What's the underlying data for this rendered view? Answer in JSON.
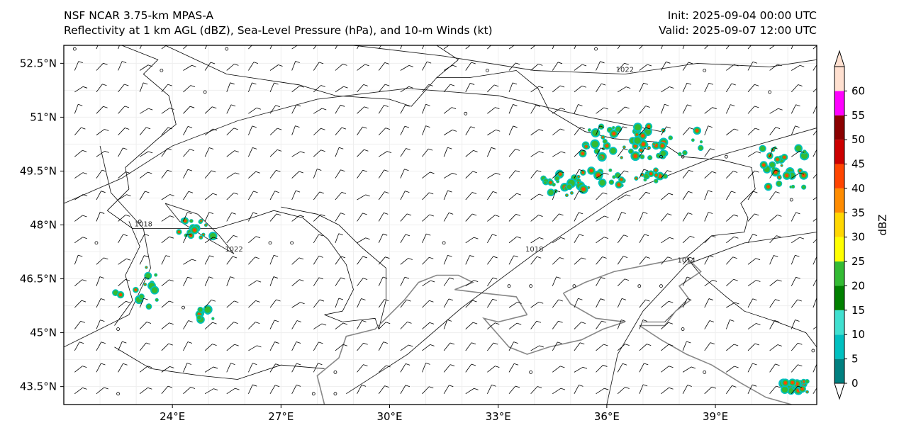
{
  "header": {
    "line1_left": "NSF NCAR 3.75-km MPAS-A",
    "line2_left": "Reflectivity at 1 km AGL (dBZ), Sea-Level Pressure (hPa), and 10-m Winds (kt)",
    "line1_right": "Init: 2025-09-04 00:00 UTC",
    "line2_right": "Valid: 2025-09-07 12:00 UTC"
  },
  "map": {
    "lon_range": [
      21,
      41.8
    ],
    "lat_range": [
      43,
      53
    ],
    "lon_ticks": [
      {
        "value": 24,
        "label": "24°E"
      },
      {
        "value": 27,
        "label": "27°E"
      },
      {
        "value": 30,
        "label": "30°E"
      },
      {
        "value": 33,
        "label": "33°E"
      },
      {
        "value": 36,
        "label": "36°E"
      },
      {
        "value": 39,
        "label": "39°E"
      }
    ],
    "lat_ticks": [
      {
        "value": 52.5,
        "label": "52.5°N"
      },
      {
        "value": 51,
        "label": "51°N"
      },
      {
        "value": 49.5,
        "label": "49.5°N"
      },
      {
        "value": 48,
        "label": "48°N"
      },
      {
        "value": 46.5,
        "label": "46.5°N"
      },
      {
        "value": 45,
        "label": "45°N"
      },
      {
        "value": 43.5,
        "label": "43.5°N"
      }
    ],
    "isobars": [
      {
        "label": "1022",
        "points": [
          [
            29.0,
            53.0
          ],
          [
            31.5,
            52.7
          ],
          [
            34.0,
            52.3
          ],
          [
            36.5,
            52.2
          ],
          [
            38.5,
            52.5
          ],
          [
            40.5,
            52.4
          ],
          [
            41.8,
            52.6
          ]
        ]
      },
      {
        "label": "1018",
        "points": [
          [
            21.0,
            44.6
          ],
          [
            22.8,
            45.5
          ],
          [
            23.4,
            46.8
          ],
          [
            23.2,
            47.9
          ],
          [
            22.3,
            48.9
          ],
          [
            22.0,
            50.2
          ]
        ]
      },
      {
        "label": "1018",
        "points": [
          [
            28.8,
            43.3
          ],
          [
            30.5,
            44.4
          ],
          [
            32.0,
            45.7
          ],
          [
            34.0,
            47.2
          ],
          [
            36.5,
            48.9
          ],
          [
            39.0,
            49.9
          ],
          [
            41.8,
            50.7
          ]
        ]
      },
      {
        "label": "1014",
        "points": [
          [
            36.0,
            43.0
          ],
          [
            36.3,
            44.4
          ],
          [
            37.0,
            45.6
          ],
          [
            38.2,
            46.9
          ],
          [
            39.8,
            47.5
          ],
          [
            41.8,
            47.8
          ]
        ]
      },
      {
        "label": "1022",
        "points": [
          [
            23.8,
            48.6
          ],
          [
            24.7,
            48.3
          ],
          [
            25.3,
            47.7
          ],
          [
            25.7,
            47.2
          ],
          [
            25.0,
            47.6
          ],
          [
            24.2,
            48.1
          ],
          [
            23.8,
            48.6
          ]
        ]
      },
      {
        "label": "",
        "points": [
          [
            21.0,
            48.6
          ],
          [
            22.6,
            49.3
          ],
          [
            24.0,
            50.2
          ],
          [
            25.8,
            50.9
          ],
          [
            28.0,
            51.5
          ],
          [
            30.5,
            51.8
          ],
          [
            33.0,
            51.6
          ],
          [
            35.5,
            51.0
          ],
          [
            37.5,
            50.6
          ]
        ]
      }
    ],
    "reflectivity_scale": [
      "#ffffff",
      "#008080",
      "#00c0c0",
      "#40e0d0",
      "#008000",
      "#33bb33",
      "#ffff00",
      "#ffd700",
      "#ff8c00",
      "#ff4500",
      "#cc0000",
      "#8b0000",
      "#ff00ff",
      "#ffe0d0"
    ]
  },
  "colorbar": {
    "label": "dBZ",
    "ticks": [
      "0",
      "5",
      "10",
      "15",
      "20",
      "25",
      "30",
      "35",
      "40",
      "45",
      "50",
      "55",
      "60"
    ],
    "colors": [
      "#008080",
      "#00c0c0",
      "#40e0d0",
      "#008000",
      "#33bb33",
      "#ffff00",
      "#ffd700",
      "#ff8c00",
      "#ff4500",
      "#cc0000",
      "#8b0000",
      "#ff00ff",
      "#ffe0d0"
    ]
  }
}
